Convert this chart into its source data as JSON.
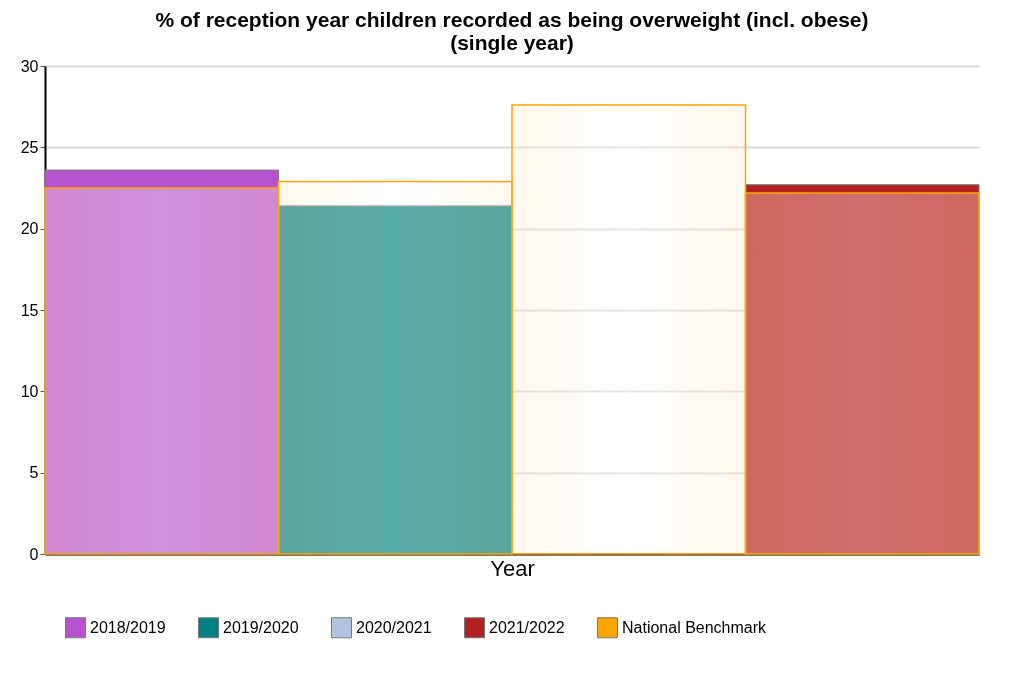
{
  "chart_data": {
    "type": "bar",
    "title": [
      "% of reception year children recorded as being overweight (incl. obese)",
      "(single year)"
    ],
    "xlabel": "Year",
    "categories": [
      null,
      null,
      null,
      null
    ],
    "series": [
      {
        "name": "2018/2019",
        "color": "#b853d0",
        "values": [
          23.6,
          null,
          null,
          null
        ]
      },
      {
        "name": "2019/2020",
        "color": "#008080",
        "values": [
          null,
          21.4,
          null,
          null
        ]
      },
      {
        "name": "2020/2021",
        "color": "#b0c4de",
        "values": [
          null,
          null,
          null,
          null
        ]
      },
      {
        "name": "2021/2022",
        "color": "#b22222",
        "values": [
          null,
          null,
          null,
          22.7
        ]
      },
      {
        "name": "National Benchmark",
        "color": "#ffa500",
        "values": [
          22.5,
          22.9,
          27.6,
          22.2
        ]
      }
    ],
    "ylim": [
      0,
      30
    ],
    "yticks": [
      0,
      5,
      10,
      15,
      20,
      25,
      30
    ],
    "grid": "y",
    "legend": "bottom"
  }
}
